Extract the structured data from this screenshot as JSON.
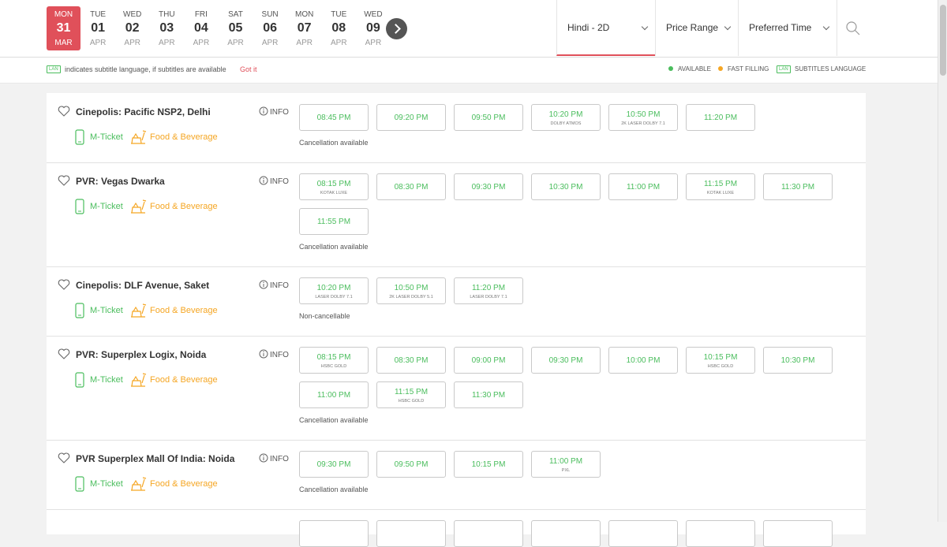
{
  "dates": [
    {
      "day": "MON",
      "date": "31",
      "month": "MAR",
      "selected": true
    },
    {
      "day": "TUE",
      "date": "01",
      "month": "APR"
    },
    {
      "day": "WED",
      "date": "02",
      "month": "APR"
    },
    {
      "day": "THU",
      "date": "03",
      "month": "APR"
    },
    {
      "day": "FRI",
      "date": "04",
      "month": "APR"
    },
    {
      "day": "SAT",
      "date": "05",
      "month": "APR"
    },
    {
      "day": "SUN",
      "date": "06",
      "month": "APR"
    },
    {
      "day": "MON",
      "date": "07",
      "month": "APR"
    },
    {
      "day": "TUE",
      "date": "08",
      "month": "APR"
    },
    {
      "day": "WED",
      "date": "09",
      "month": "APR"
    }
  ],
  "filters": [
    "Hindi - 2D",
    "Price Range",
    "Preferred Time"
  ],
  "legend": {
    "lan_icon": "LAN",
    "subtitle_note": "indicates subtitle language, if subtitles are available",
    "got_it": "Got it",
    "available": "AVAILABLE",
    "fast_filling": "FAST FILLING",
    "subtitles": "SUBTITLES LANGUAGE"
  },
  "venues": [
    {
      "name": "Cinepolis: Pacific NSP2, Delhi",
      "mticket": "M-Ticket",
      "food": "Food & Beverage",
      "info": "INFO",
      "showtimes": [
        {
          "time": "08:45 PM"
        },
        {
          "time": "09:20 PM"
        },
        {
          "time": "09:50 PM"
        },
        {
          "time": "10:20 PM",
          "format": "DOLBY ATMOS"
        },
        {
          "time": "10:50 PM",
          "format": "2K LASER DOLBY 7.1"
        },
        {
          "time": "11:20 PM"
        }
      ],
      "note": "Cancellation available"
    },
    {
      "name": "PVR: Vegas Dwarka",
      "mticket": "M-Ticket",
      "food": "Food & Beverage",
      "info": "INFO",
      "showtimes": [
        {
          "time": "08:15 PM",
          "format": "KOTAK LUXE"
        },
        {
          "time": "08:30 PM"
        },
        {
          "time": "09:30 PM"
        },
        {
          "time": "10:30 PM"
        },
        {
          "time": "11:00 PM"
        },
        {
          "time": "11:15 PM",
          "format": "KOTAK LUXE"
        },
        {
          "time": "11:30 PM"
        },
        {
          "time": "11:55 PM"
        }
      ],
      "note": "Cancellation available"
    },
    {
      "name": "Cinepolis: DLF Avenue, Saket",
      "mticket": "M-Ticket",
      "food": "Food & Beverage",
      "info": "INFO",
      "showtimes": [
        {
          "time": "10:20 PM",
          "format": "LASER DOLBY 7.1"
        },
        {
          "time": "10:50 PM",
          "format": "2K LASER DOLBY 5.1"
        },
        {
          "time": "11:20 PM",
          "format": "LASER DOLBY 7.1"
        }
      ],
      "note": "Non-cancellable"
    },
    {
      "name": "PVR: Superplex Logix, Noida",
      "mticket": "M-Ticket",
      "food": "Food & Beverage",
      "info": "INFO",
      "showtimes": [
        {
          "time": "08:15 PM",
          "format": "HSBC GOLD"
        },
        {
          "time": "08:30 PM"
        },
        {
          "time": "09:00 PM"
        },
        {
          "time": "09:30 PM"
        },
        {
          "time": "10:00 PM"
        },
        {
          "time": "10:15 PM",
          "format": "HSBC GOLD"
        },
        {
          "time": "10:30 PM"
        },
        {
          "time": "11:00 PM"
        },
        {
          "time": "11:15 PM",
          "format": "HSBC GOLD"
        },
        {
          "time": "11:30 PM"
        }
      ],
      "note": "Cancellation available"
    },
    {
      "name": "PVR Superplex Mall Of India: Noida",
      "mticket": "M-Ticket",
      "food": "Food & Beverage",
      "info": "INFO",
      "showtimes": [
        {
          "time": "09:30 PM"
        },
        {
          "time": "09:50 PM"
        },
        {
          "time": "10:15 PM"
        },
        {
          "time": "11:00 PM",
          "format": "PXL"
        }
      ],
      "note": "Cancellation available"
    }
  ]
}
